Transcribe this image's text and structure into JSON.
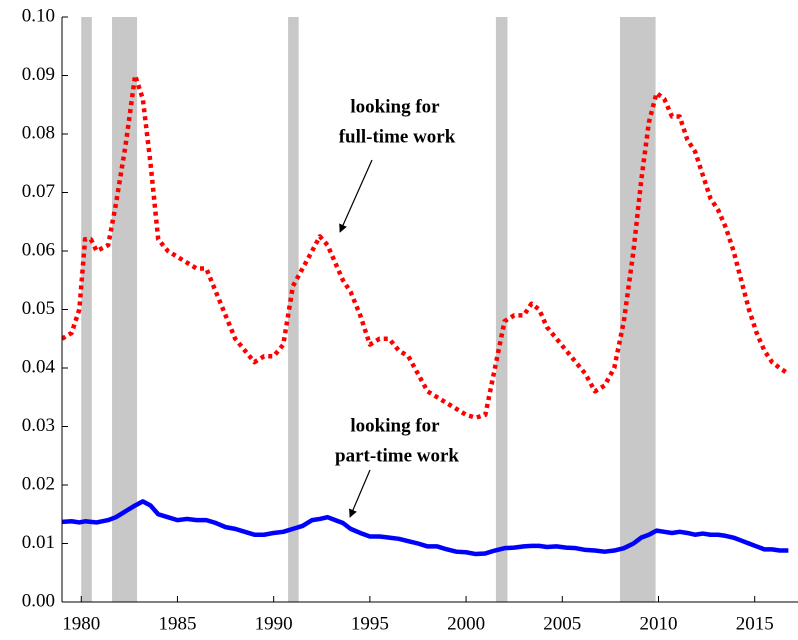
{
  "chart_data": {
    "type": "line",
    "x": [
      1979.0,
      1979.5,
      1979.9,
      1980.2,
      1980.5,
      1980.8,
      1981.4,
      1981.8,
      1982.3,
      1982.8,
      1983.2,
      1983.6,
      1984.0,
      1984.5,
      1985.0,
      1985.5,
      1986.0,
      1986.5,
      1987.0,
      1987.5,
      1988.0,
      1988.5,
      1989.0,
      1989.5,
      1990.0,
      1990.5,
      1991.0,
      1991.5,
      1992.0,
      1992.4,
      1992.8,
      1993.2,
      1993.6,
      1994.0,
      1994.5,
      1995.0,
      1995.5,
      1996.0,
      1996.5,
      1997.0,
      1997.5,
      1998.0,
      1998.5,
      1999.0,
      1999.5,
      2000.0,
      2000.5,
      2001.0,
      2001.5,
      2002.0,
      2002.5,
      2003.0,
      2003.4,
      2003.8,
      2004.2,
      2004.7,
      2005.2,
      2005.7,
      2006.2,
      2006.7,
      2007.2,
      2007.7,
      2008.2,
      2008.7,
      2009.1,
      2009.5,
      2009.9,
      2010.3,
      2010.7,
      2011.1,
      2011.5,
      2011.9,
      2012.3,
      2012.7,
      2013.1,
      2013.5,
      2013.9,
      2014.3,
      2014.7,
      2015.1,
      2015.5,
      2015.9,
      2016.3,
      2016.75
    ],
    "series": [
      {
        "color": "#ff0000",
        "values": [
          0.045,
          0.046,
          0.05,
          0.062,
          0.062,
          0.06,
          0.061,
          0.068,
          0.078,
          0.09,
          0.086,
          0.075,
          0.062,
          0.06,
          0.059,
          0.058,
          0.057,
          0.057,
          0.053,
          0.049,
          0.045,
          0.043,
          0.041,
          0.042,
          0.042,
          0.044,
          0.054,
          0.057,
          0.06,
          0.0625,
          0.061,
          0.058,
          0.055,
          0.053,
          0.049,
          0.044,
          0.045,
          0.045,
          0.043,
          0.042,
          0.039,
          0.036,
          0.035,
          0.034,
          0.033,
          0.032,
          0.0315,
          0.032,
          0.04,
          0.048,
          0.049,
          0.049,
          0.051,
          0.05,
          0.047,
          0.045,
          0.043,
          0.041,
          0.039,
          0.036,
          0.037,
          0.04,
          0.048,
          0.06,
          0.072,
          0.082,
          0.087,
          0.086,
          0.083,
          0.083,
          0.079,
          0.077,
          0.073,
          0.069,
          0.067,
          0.064,
          0.06,
          0.055,
          0.05,
          0.046,
          0.043,
          0.041,
          0.04,
          0.039
        ]
      },
      {
        "color": "#0000ff",
        "values": [
          0.0137,
          0.0138,
          0.0136,
          0.0138,
          0.0137,
          0.0136,
          0.014,
          0.0145,
          0.0155,
          0.0165,
          0.0172,
          0.0165,
          0.015,
          0.0145,
          0.014,
          0.0142,
          0.014,
          0.014,
          0.0135,
          0.0128,
          0.0125,
          0.012,
          0.0115,
          0.0115,
          0.0118,
          0.012,
          0.0125,
          0.013,
          0.014,
          0.0142,
          0.0145,
          0.014,
          0.0135,
          0.0125,
          0.0118,
          0.0112,
          0.0112,
          0.011,
          0.0108,
          0.0104,
          0.01,
          0.0095,
          0.0095,
          0.009,
          0.0086,
          0.0085,
          0.0082,
          0.0083,
          0.0088,
          0.0092,
          0.0093,
          0.0095,
          0.0096,
          0.0096,
          0.0094,
          0.0095,
          0.0093,
          0.0092,
          0.0089,
          0.0088,
          0.0086,
          0.0088,
          0.0092,
          0.01,
          0.011,
          0.0115,
          0.0122,
          0.012,
          0.0118,
          0.012,
          0.0118,
          0.0115,
          0.0117,
          0.0115,
          0.0115,
          0.0113,
          0.011,
          0.0105,
          0.01,
          0.0095,
          0.009,
          0.009,
          0.0088,
          0.0088
        ]
      }
    ],
    "recessions": [
      [
        1980.0,
        1980.55
      ],
      [
        1981.6,
        1982.9
      ],
      [
        1990.75,
        1991.3
      ],
      [
        2001.55,
        2002.15
      ],
      [
        2008.0,
        2009.85
      ]
    ],
    "recession_color": "#c8c8c8",
    "annotations": [
      {
        "lines": [
          "looking for",
          "full-time work"
        ]
      },
      {
        "lines": [
          "looking for",
          "part-time work"
        ]
      }
    ],
    "xlim": [
      1979,
      2017.25
    ],
    "xticks": [
      1980,
      1985,
      1990,
      1995,
      2000,
      2005,
      2010,
      2015
    ],
    "ylim": [
      0,
      0.1
    ],
    "yticks": [
      {
        "value": 0,
        "label": "0.00"
      },
      0.01,
      0.02,
      0.03,
      0.04,
      0.05,
      0.06,
      0.07,
      0.08,
      0.09,
      {
        "value": 0.1,
        "label": "0.10"
      }
    ]
  }
}
